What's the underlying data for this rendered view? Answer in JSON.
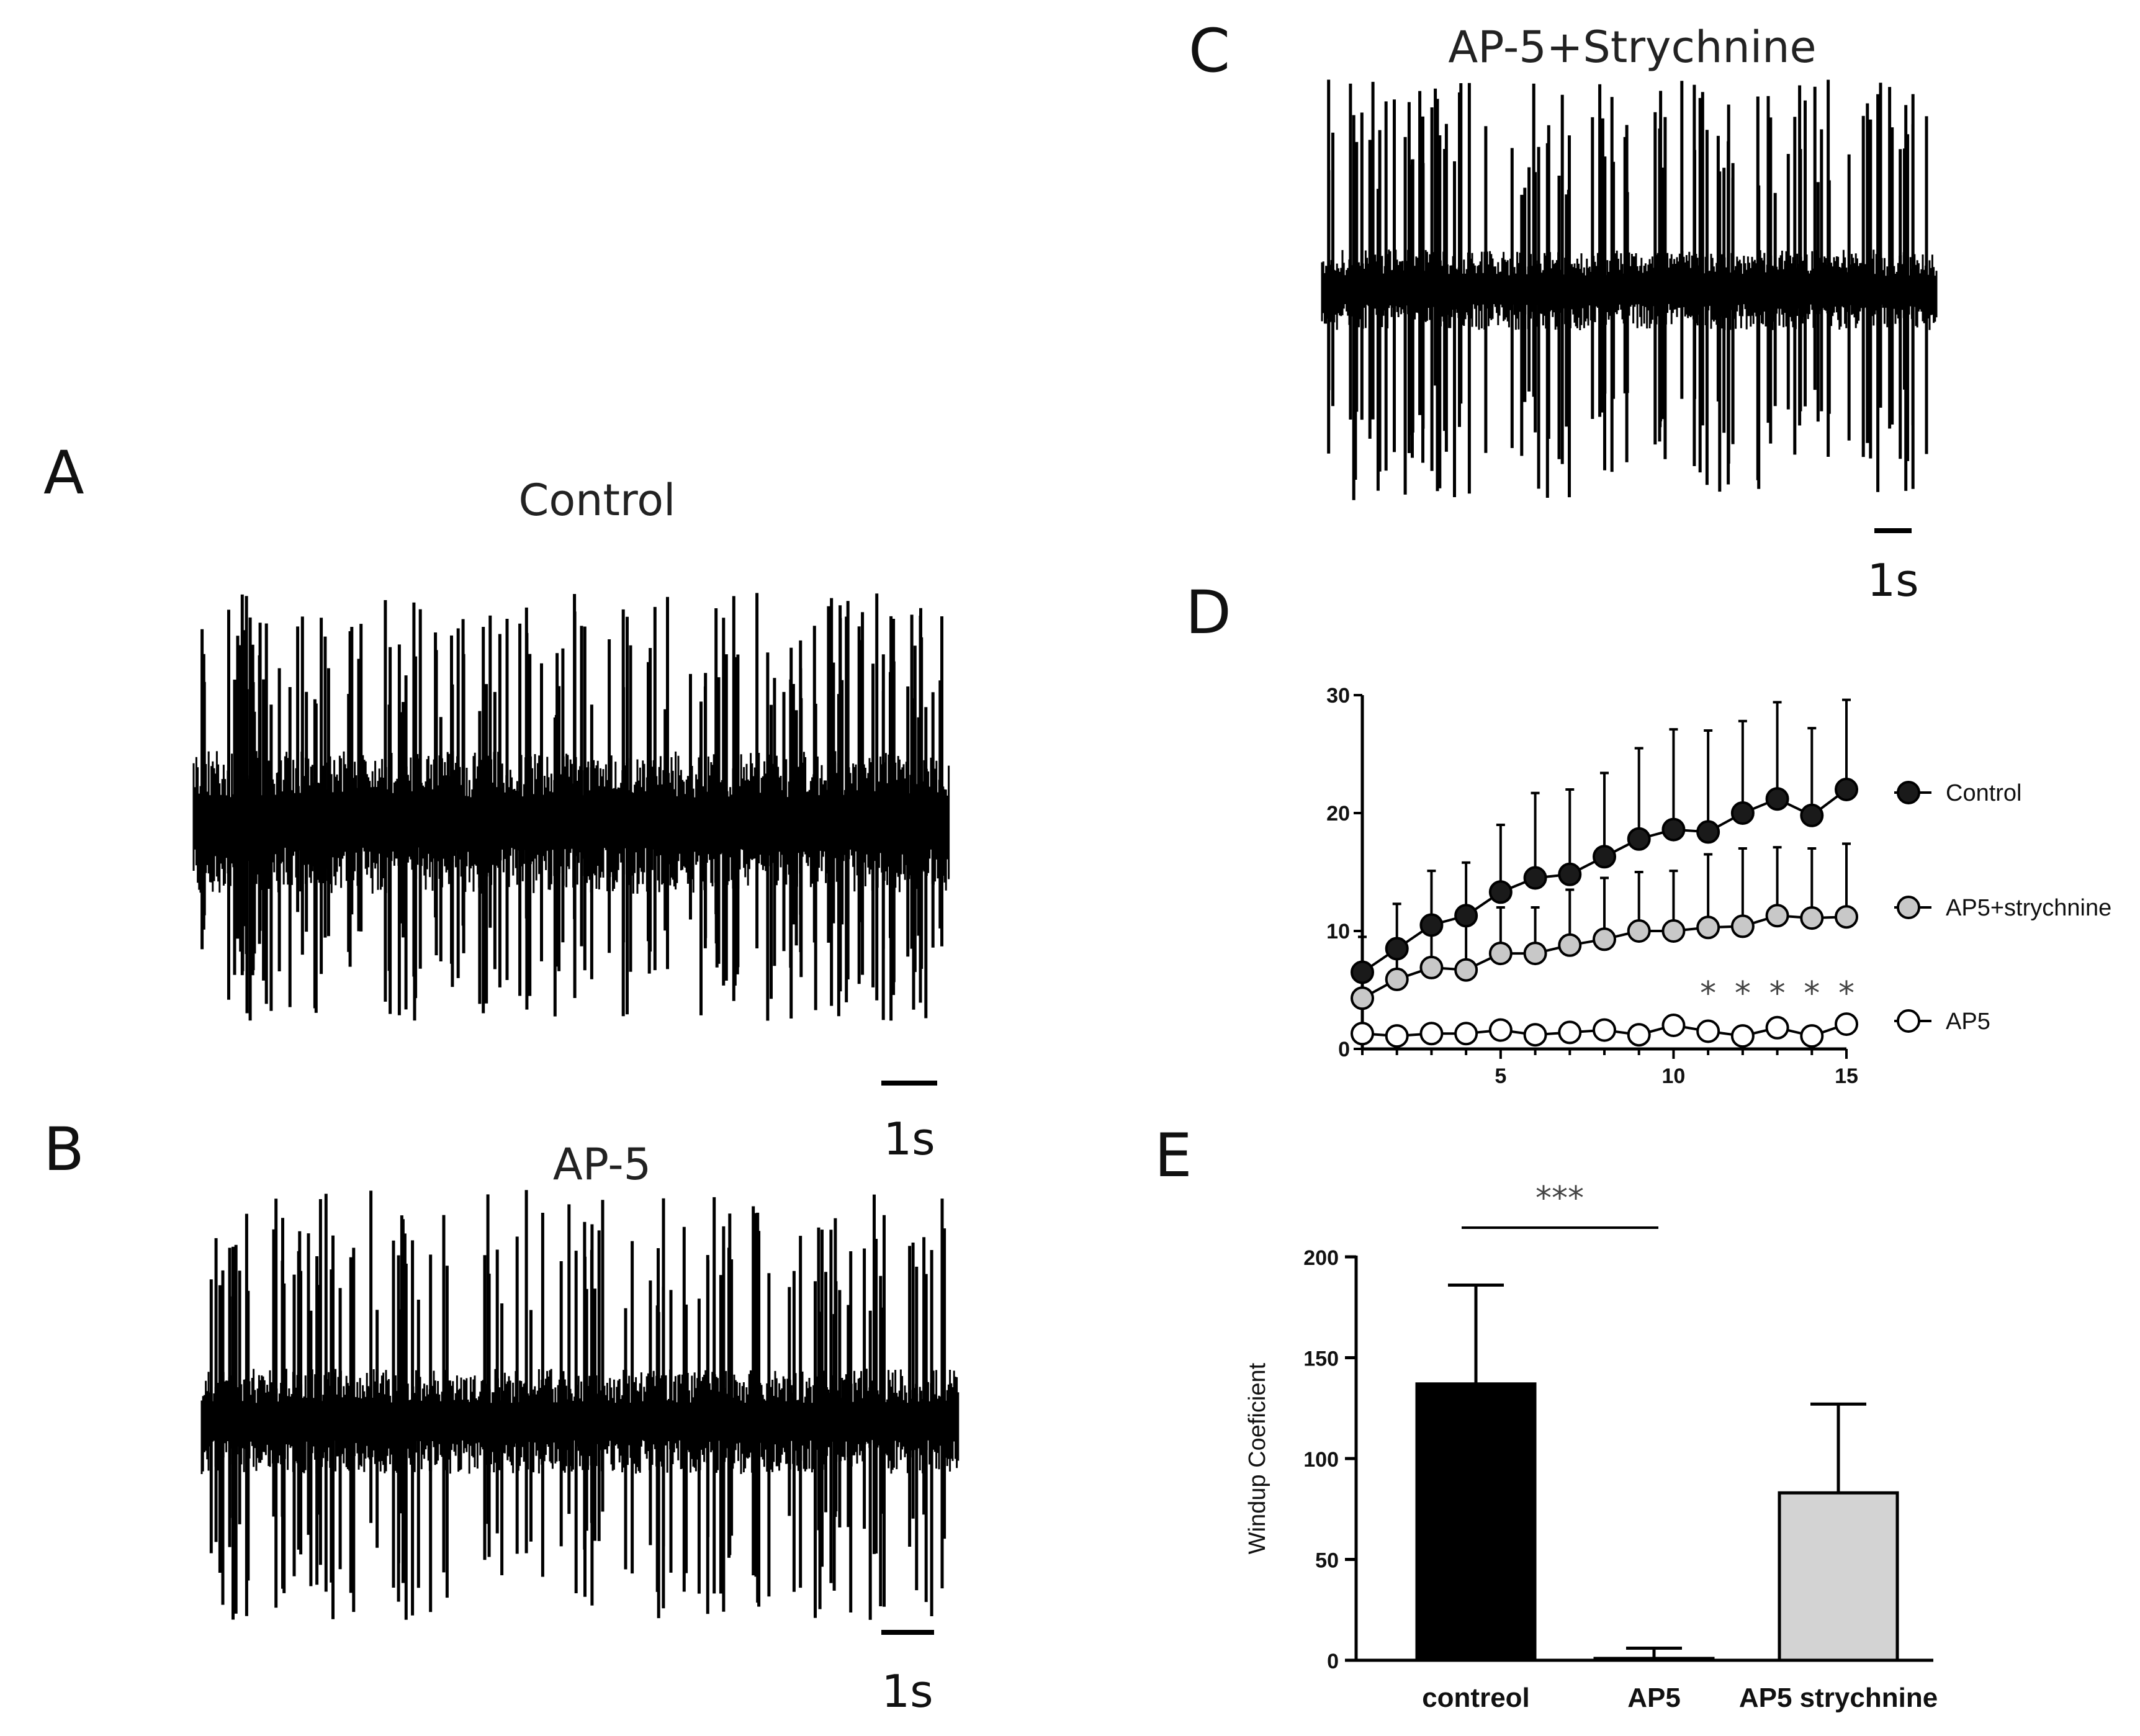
{
  "chart_data": [
    {
      "type": "line",
      "panel": "A",
      "title": "Control",
      "description_units": "extracellular spike recording trace",
      "scale_bar_label": "1s"
    },
    {
      "type": "line",
      "panel": "B",
      "title": "AP-5",
      "scale_bar_label": "1s"
    },
    {
      "type": "line",
      "panel": "C",
      "title": "AP-5+Strychnine",
      "scale_bar_label": "1s"
    },
    {
      "type": "line",
      "panel": "D",
      "title": "",
      "xlabel": "",
      "ylabel": "",
      "xlim": [
        1,
        15
      ],
      "ylim": [
        0,
        30
      ],
      "x_ticks": [
        "5",
        "10",
        "15"
      ],
      "y_ticks": [
        "0",
        "10",
        "20",
        "30"
      ],
      "x": [
        1,
        2,
        3,
        4,
        5,
        6,
        7,
        8,
        9,
        10,
        11,
        12,
        13,
        14,
        15
      ],
      "series": [
        {
          "name": "Control",
          "marker": "filled-black",
          "values": [
            6.5,
            8.5,
            10.5,
            11.3,
            13.3,
            14.5,
            14.8,
            16.3,
            17.8,
            18.6,
            18.4,
            20.0,
            21.2,
            19.8,
            22.0
          ],
          "error_up": [
            9.5,
            12.3,
            15.1,
            15.8,
            19.0,
            21.7,
            22.0,
            23.4,
            25.5,
            27.1,
            27.0,
            27.8,
            29.4,
            27.2,
            29.6
          ]
        },
        {
          "name": "AP5+strychnine",
          "marker": "filled-gray",
          "values": [
            4.3,
            5.9,
            6.9,
            6.7,
            8.1,
            8.1,
            8.8,
            9.3,
            10.0,
            10.0,
            10.3,
            10.4,
            11.3,
            11.1,
            11.2
          ],
          "error_up": [
            6.3,
            8.3,
            10.0,
            10.5,
            12.0,
            12.0,
            13.5,
            14.5,
            15.0,
            15.1,
            16.5,
            17.0,
            17.1,
            17.0,
            17.4
          ]
        },
        {
          "name": "AP5",
          "marker": "open-white",
          "values": [
            1.3,
            1.1,
            1.3,
            1.3,
            1.6,
            1.2,
            1.4,
            1.6,
            1.2,
            2.0,
            1.5,
            1.1,
            1.8,
            1.1,
            2.1
          ],
          "error_up": [
            null,
            null,
            null,
            null,
            null,
            null,
            null,
            null,
            null,
            null,
            null,
            null,
            null,
            null,
            null
          ]
        }
      ],
      "significance": [
        {
          "x": 11,
          "label": "*"
        },
        {
          "x": 12,
          "label": "*"
        },
        {
          "x": 13,
          "label": "*"
        },
        {
          "x": 14,
          "label": "*"
        },
        {
          "x": 15,
          "label": "*"
        }
      ],
      "legend": [
        "Control",
        "AP5+strychnine",
        "AP5"
      ],
      "legend_position": "right"
    },
    {
      "type": "bar",
      "panel": "E",
      "title": "",
      "xlabel": "",
      "ylabel": "Windup Coeficient",
      "ylim": [
        0,
        200
      ],
      "y_ticks": [
        "0",
        "50",
        "100",
        "150",
        "200"
      ],
      "categories": [
        "contreol",
        "AP5",
        "AP5 strychnine"
      ],
      "values": [
        137,
        0,
        83
      ],
      "error_up": [
        186,
        6,
        127
      ],
      "bar_colors": [
        "#000000",
        "#ffffff",
        "#d3d3d3"
      ],
      "significance": {
        "between": [
          "contreol",
          "AP5"
        ],
        "label": "***"
      }
    }
  ]
}
